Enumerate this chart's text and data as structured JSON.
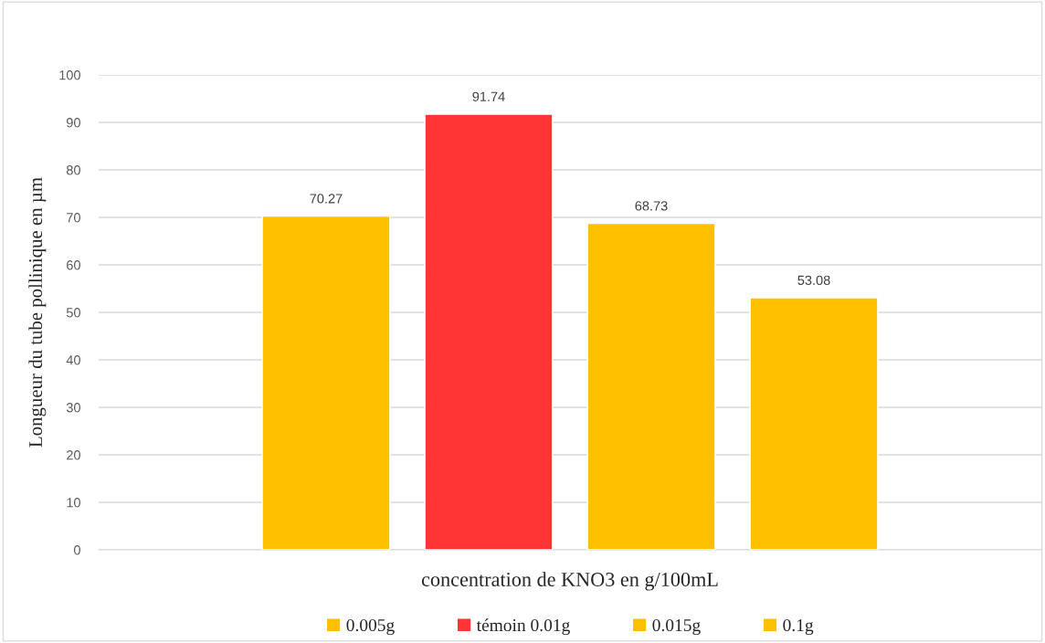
{
  "chart_data": {
    "type": "bar",
    "categories": [
      null
    ],
    "series": [
      {
        "name": "0.005g",
        "color": "#ffc000",
        "values": [
          70.27
        ]
      },
      {
        "name": "témoin 0.01g",
        "color": "#ff3535",
        "values": [
          91.74
        ]
      },
      {
        "name": "0.015g",
        "color": "#ffc000",
        "values": [
          68.73
        ]
      },
      {
        "name": "0.1g",
        "color": "#ffc000",
        "values": [
          53.08
        ]
      }
    ],
    "xlabel": "concentration de KNO3 en g/100mL",
    "ylabel": "Longueur du tube pollinique en µm",
    "ylim": [
      0,
      100
    ],
    "yticks": [
      0,
      10,
      20,
      30,
      40,
      50,
      60,
      70,
      80,
      90,
      100
    ],
    "grid": "y",
    "legend": "bottom",
    "data_labels": true
  }
}
